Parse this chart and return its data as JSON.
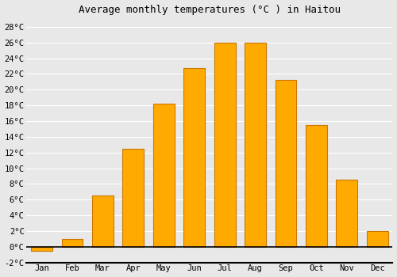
{
  "title": "Average monthly temperatures (°C ) in Haitou",
  "months": [
    "Jan",
    "Feb",
    "Mar",
    "Apr",
    "May",
    "Jun",
    "Jul",
    "Aug",
    "Sep",
    "Oct",
    "Nov",
    "Dec"
  ],
  "values": [
    -0.5,
    1.0,
    6.5,
    12.5,
    18.2,
    22.7,
    26.0,
    26.0,
    21.2,
    15.5,
    8.5,
    2.0
  ],
  "bar_color": "#FFAA00",
  "bar_edge_color": "#CC7700",
  "ylim": [
    -2,
    29
  ],
  "yticks": [
    -2,
    0,
    2,
    4,
    6,
    8,
    10,
    12,
    14,
    16,
    18,
    20,
    22,
    24,
    26,
    28
  ],
  "background_color": "#e8e8e8",
  "plot_bg_color": "#e8e8e8",
  "grid_color": "#ffffff",
  "title_fontsize": 9,
  "tick_fontsize": 7.5
}
